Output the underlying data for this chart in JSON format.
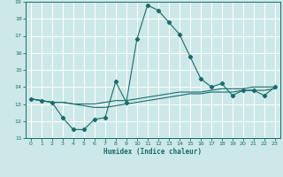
{
  "xlabel": "Humidex (Indice chaleur)",
  "ylabel": "",
  "bg_color": "#cde8e8",
  "line_color": "#1a6b6b",
  "grid_color": "#b8d8d8",
  "xlim": [
    -0.5,
    23.5
  ],
  "ylim": [
    11,
    19
  ],
  "xticks": [
    0,
    1,
    2,
    3,
    4,
    5,
    6,
    7,
    8,
    9,
    10,
    11,
    12,
    13,
    14,
    15,
    16,
    17,
    18,
    19,
    20,
    21,
    22,
    23
  ],
  "yticks": [
    11,
    12,
    13,
    14,
    15,
    16,
    17,
    18,
    19
  ],
  "series1_x": [
    0,
    1,
    2,
    3,
    4,
    5,
    6,
    7,
    8,
    9,
    10,
    11,
    12,
    13,
    14,
    15,
    16,
    17,
    18,
    19,
    20,
    21,
    22,
    23
  ],
  "series1_y": [
    13.3,
    13.2,
    13.1,
    12.2,
    11.5,
    11.5,
    12.1,
    12.2,
    14.3,
    13.1,
    16.8,
    18.8,
    18.5,
    17.8,
    17.1,
    15.8,
    14.5,
    14.0,
    14.2,
    13.5,
    13.8,
    13.8,
    13.5,
    14.0
  ],
  "series2_x": [
    0,
    1,
    2,
    3,
    4,
    5,
    6,
    7,
    8,
    9,
    10,
    11,
    12,
    13,
    14,
    15,
    16,
    17,
    18,
    19,
    20,
    21,
    22,
    23
  ],
  "series2_y": [
    13.3,
    13.2,
    13.1,
    13.1,
    13.0,
    13.0,
    13.0,
    13.1,
    13.2,
    13.2,
    13.3,
    13.4,
    13.5,
    13.6,
    13.7,
    13.7,
    13.7,
    13.8,
    13.9,
    13.9,
    13.9,
    14.0,
    14.0,
    14.0
  ],
  "series3_x": [
    0,
    1,
    2,
    3,
    4,
    5,
    6,
    7,
    8,
    9,
    10,
    11,
    12,
    13,
    14,
    15,
    16,
    17,
    18,
    19,
    20,
    21,
    22,
    23
  ],
  "series3_y": [
    13.3,
    13.2,
    13.1,
    13.1,
    13.0,
    12.9,
    12.8,
    12.8,
    12.9,
    13.0,
    13.1,
    13.2,
    13.3,
    13.4,
    13.5,
    13.6,
    13.6,
    13.7,
    13.7,
    13.7,
    13.8,
    13.8,
    13.8,
    13.9
  ]
}
